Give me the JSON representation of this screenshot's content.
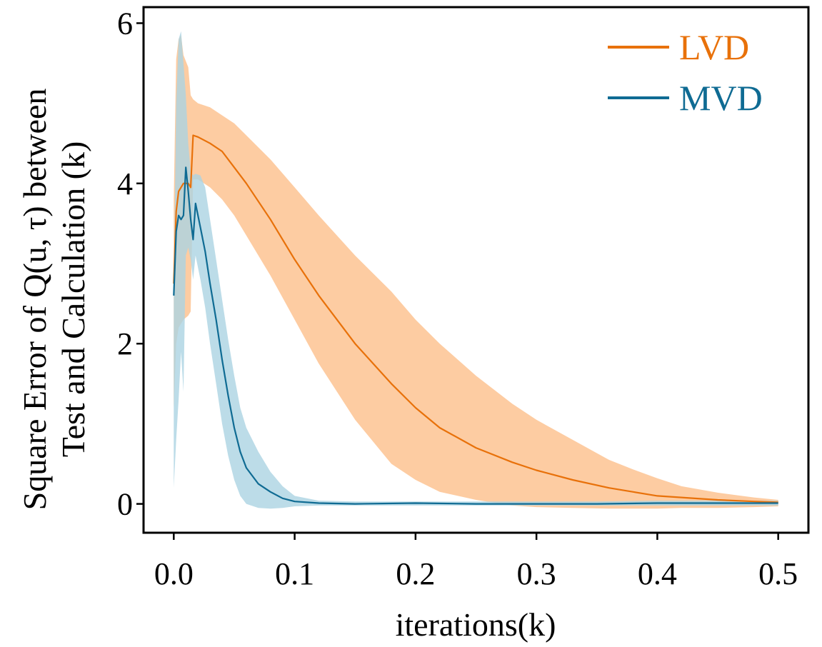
{
  "chart_data": {
    "type": "line",
    "title": "",
    "xlabel": "iterations(k)",
    "ylabel_line1": "Square Error of Q(u, τ) between",
    "ylabel_line2": "Test and Calculation (k)",
    "xlim": [
      -0.025,
      0.525
    ],
    "ylim": [
      -0.36,
      6.2
    ],
    "xticks": [
      0.0,
      0.1,
      0.2,
      0.3,
      0.4,
      0.5
    ],
    "xtick_labels": [
      "0.0",
      "0.1",
      "0.2",
      "0.3",
      "0.4",
      "0.5"
    ],
    "yticks": [
      0,
      2,
      4,
      6
    ],
    "ytick_labels": [
      "0",
      "2",
      "4",
      "6"
    ],
    "grid": false,
    "legend_position": "top-right",
    "series": [
      {
        "name": "LVD",
        "color": "#e8710a",
        "band_color": "#fdc392",
        "x": [
          0.0,
          0.002,
          0.004,
          0.006,
          0.008,
          0.012,
          0.014,
          0.016,
          0.02,
          0.03,
          0.04,
          0.05,
          0.06,
          0.08,
          0.1,
          0.12,
          0.15,
          0.18,
          0.2,
          0.22,
          0.25,
          0.28,
          0.3,
          0.33,
          0.36,
          0.38,
          0.4,
          0.42,
          0.45,
          0.48,
          0.5
        ],
        "y": [
          2.75,
          3.65,
          3.9,
          3.95,
          4.0,
          4.0,
          3.95,
          4.6,
          4.58,
          4.5,
          4.4,
          4.2,
          4.0,
          3.55,
          3.05,
          2.6,
          2.0,
          1.5,
          1.2,
          0.95,
          0.7,
          0.52,
          0.42,
          0.3,
          0.2,
          0.15,
          0.1,
          0.08,
          0.05,
          0.03,
          0.02
        ],
        "upper": [
          3.8,
          5.55,
          5.8,
          5.85,
          5.6,
          5.45,
          5.1,
          5.05,
          5.0,
          4.95,
          4.85,
          4.75,
          4.6,
          4.3,
          3.95,
          3.6,
          3.1,
          2.65,
          2.3,
          2.0,
          1.6,
          1.25,
          1.05,
          0.8,
          0.55,
          0.43,
          0.32,
          0.22,
          0.14,
          0.08,
          0.05
        ],
        "lower": [
          1.2,
          2.0,
          2.2,
          2.25,
          2.3,
          2.35,
          2.4,
          4.05,
          4.05,
          3.95,
          3.8,
          3.6,
          3.35,
          2.85,
          2.3,
          1.75,
          1.05,
          0.5,
          0.3,
          0.15,
          0.05,
          -0.02,
          -0.04,
          -0.05,
          -0.06,
          -0.06,
          -0.06,
          -0.05,
          -0.05,
          -0.04,
          -0.03
        ]
      },
      {
        "name": "MVD",
        "color": "#0f6b93",
        "band_color": "#abd3e2",
        "x": [
          0.0,
          0.002,
          0.004,
          0.006,
          0.008,
          0.01,
          0.012,
          0.014,
          0.016,
          0.018,
          0.022,
          0.026,
          0.03,
          0.035,
          0.04,
          0.045,
          0.05,
          0.055,
          0.06,
          0.07,
          0.08,
          0.09,
          0.1,
          0.12,
          0.15,
          0.2,
          0.25,
          0.3,
          0.35,
          0.4,
          0.45,
          0.5
        ],
        "y": [
          2.6,
          3.4,
          3.6,
          3.55,
          3.6,
          4.2,
          3.9,
          3.55,
          3.3,
          3.75,
          3.45,
          3.15,
          2.75,
          2.3,
          1.8,
          1.35,
          0.95,
          0.65,
          0.45,
          0.25,
          0.15,
          0.07,
          0.03,
          0.01,
          0.0,
          0.01,
          0.0,
          0.0,
          0.0,
          0.01,
          0.01,
          0.01
        ],
        "upper": [
          2.7,
          5.0,
          5.8,
          5.9,
          5.5,
          5.1,
          4.5,
          4.15,
          4.1,
          4.12,
          4.1,
          3.95,
          3.55,
          3.05,
          2.55,
          2.05,
          1.6,
          1.2,
          0.95,
          0.65,
          0.4,
          0.22,
          0.1,
          0.04,
          0.03,
          0.03,
          0.03,
          0.03,
          0.03,
          0.04,
          0.04,
          0.04
        ],
        "lower": [
          0.2,
          0.8,
          1.3,
          1.9,
          1.4,
          3.1,
          3.2,
          3.05,
          2.8,
          3.1,
          2.8,
          2.45,
          2.0,
          1.5,
          1.0,
          0.6,
          0.3,
          0.1,
          0.0,
          -0.05,
          -0.06,
          -0.05,
          -0.03,
          -0.02,
          -0.02,
          -0.02,
          -0.02,
          -0.02,
          -0.02,
          -0.02,
          -0.02,
          -0.02
        ]
      }
    ]
  }
}
